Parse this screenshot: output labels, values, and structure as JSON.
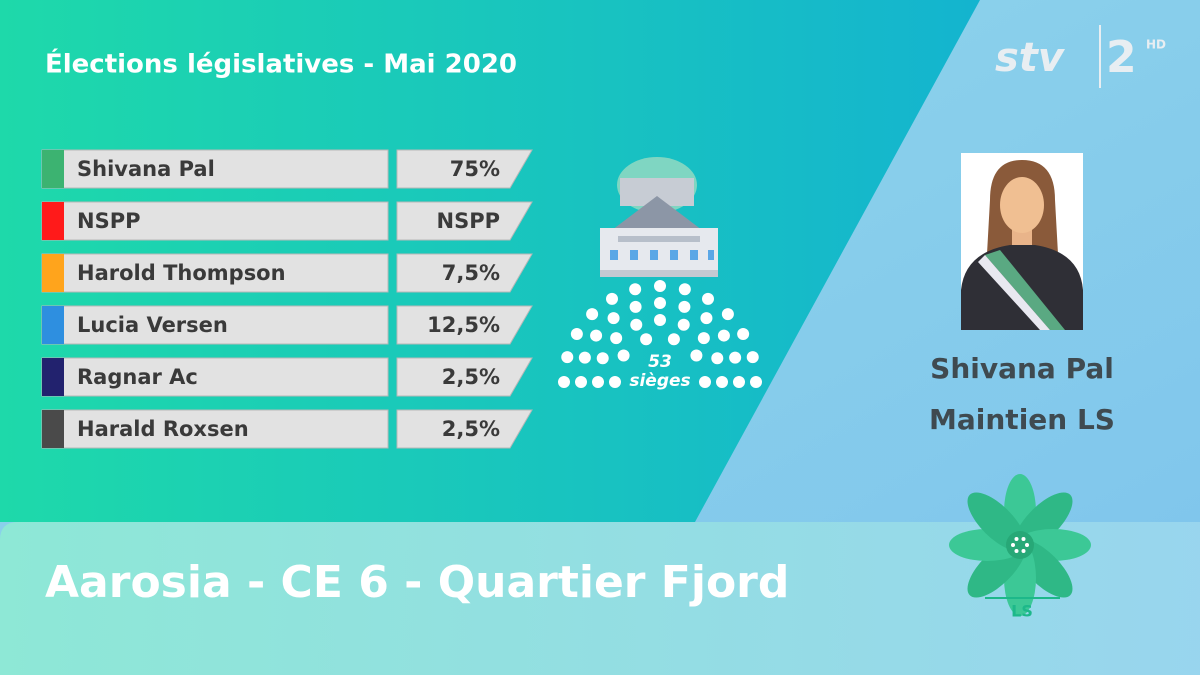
{
  "header": {
    "title": "Élections législatives - Mai 2020"
  },
  "logo": {
    "channel": "stv",
    "number": "2",
    "badge": "HD"
  },
  "results": [
    {
      "name": "Shivana Pal",
      "value": "75%",
      "color": "#3cb371"
    },
    {
      "name": "NSPP",
      "value": "NSPP",
      "color": "#ff1a1a"
    },
    {
      "name": "Harold Thompson",
      "value": "7,5%",
      "color": "#ffa41c"
    },
    {
      "name": "Lucia Versen",
      "value": "12,5%",
      "color": "#2e8fe0"
    },
    {
      "name": "Ragnar Ac",
      "value": "2,5%",
      "color": "#22226e"
    },
    {
      "name": "Harald Roxsen",
      "value": "2,5%",
      "color": "#4a4a4a"
    }
  ],
  "seats": {
    "count": "53",
    "label": "sièges"
  },
  "winner": {
    "name": "Shivana Pal",
    "party": "Maintien LS"
  },
  "party_logo": {
    "label": "LS"
  },
  "footer": {
    "constituency": "Aarosia - CE 6 - Quartier Fjord"
  }
}
